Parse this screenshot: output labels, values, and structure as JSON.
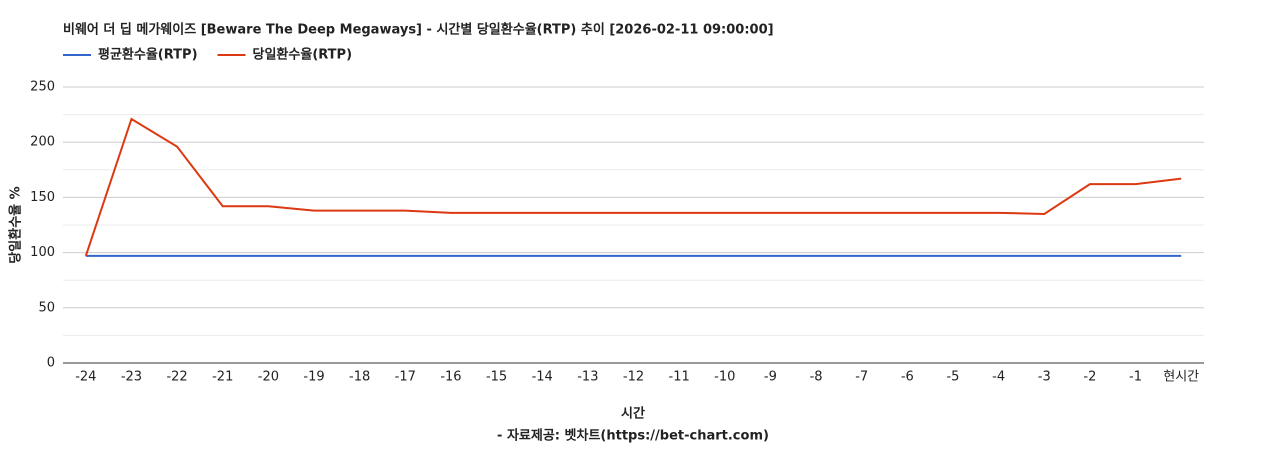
{
  "chart_data": {
    "type": "line",
    "title": "비웨어 더 딥 메가웨이즈 [Beware The Deep Megaways] - 시간별 당일환수율(RTP) 추이 [2026-02-11 09:00:00]",
    "x_label": "시간",
    "y_label": "당일환수율 %",
    "source": "- 자료제공: 벳차트(https://bet-chart.com)",
    "categories": [
      "-24",
      "-23",
      "-22",
      "-21",
      "-20",
      "-19",
      "-18",
      "-17",
      "-16",
      "-15",
      "-14",
      "-13",
      "-12",
      "-11",
      "-10",
      "-9",
      "-8",
      "-7",
      "-6",
      "-5",
      "-4",
      "-3",
      "-2",
      "-1",
      "현시간"
    ],
    "series": [
      {
        "name": "평균환수율(RTP)",
        "color": "#3366cc",
        "values": [
          97,
          97,
          97,
          97,
          97,
          97,
          97,
          97,
          97,
          97,
          97,
          97,
          97,
          97,
          97,
          97,
          97,
          97,
          97,
          97,
          97,
          97,
          97,
          97,
          97
        ]
      },
      {
        "name": "당일환수율(RTP)",
        "color": "#dc3912",
        "values": [
          97,
          221,
          196,
          142,
          142,
          138,
          138,
          138,
          136,
          136,
          136,
          136,
          136,
          136,
          136,
          136,
          136,
          136,
          136,
          136,
          136,
          135,
          162,
          162,
          167
        ]
      }
    ],
    "ylim": [
      0,
      250
    ],
    "yticks": [
      0,
      50,
      100,
      150,
      200,
      250
    ],
    "minor_yticks": [
      25,
      75,
      125,
      175,
      225
    ],
    "grid": true,
    "legend": "top-left"
  }
}
